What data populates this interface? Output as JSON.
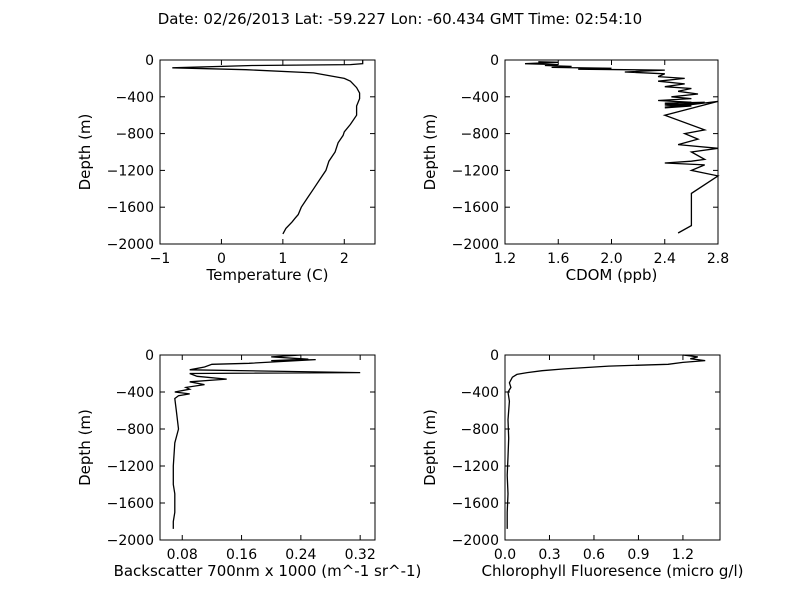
{
  "figure_title": "Date: 02/26/2013  Lat:  -59.227 Lon:  -60.434  GMT Time: 02:54:10",
  "chart_data": [
    {
      "type": "line",
      "xlabel": "Temperature (C)",
      "ylabel": "Depth (m)",
      "xlim": [
        -1,
        2.5
      ],
      "ylim": [
        -2000,
        0
      ],
      "xticks": [
        "−1",
        "0",
        "1",
        "2"
      ],
      "xtick_values": [
        -1,
        0,
        1,
        2
      ],
      "yticks": [
        "0",
        "−400",
        "−800",
        "−1200",
        "−1600",
        "−2000"
      ],
      "ytick_values": [
        0,
        -400,
        -800,
        -1200,
        -1600,
        -2000
      ],
      "series": [
        {
          "x": [
            2.3,
            2.3,
            2.1,
            0.5,
            -0.8,
            0.4,
            1.5,
            2.0,
            2.1,
            2.2,
            2.25,
            2.25,
            2.2,
            2.2,
            2.1,
            2.0,
            1.98,
            1.9,
            1.85,
            1.75,
            1.7,
            1.6,
            1.5,
            1.4,
            1.3,
            1.25,
            1.2,
            1.15,
            1.05,
            1.0
          ],
          "y": [
            0,
            -40,
            -50,
            -60,
            -85,
            -105,
            -140,
            -200,
            -230,
            -300,
            -360,
            -420,
            -500,
            -600,
            -700,
            -780,
            -820,
            -900,
            -1000,
            -1100,
            -1200,
            -1300,
            -1400,
            -1500,
            -1600,
            -1680,
            -1720,
            -1760,
            -1830,
            -1890
          ]
        }
      ]
    },
    {
      "type": "line",
      "xlabel": "CDOM (ppb)",
      "ylabel": "Depth (m)",
      "xlim": [
        1.2,
        2.8
      ],
      "ylim": [
        -2000,
        0
      ],
      "xticks": [
        "1.2",
        "1.6",
        "2.0",
        "2.4",
        "2.8"
      ],
      "xtick_values": [
        1.2,
        1.6,
        2.0,
        2.4,
        2.8
      ],
      "yticks": [
        "0",
        "−400",
        "−800",
        "−1200",
        "−1600",
        "−2000"
      ],
      "ytick_values": [
        0,
        -400,
        -800,
        -1200,
        -1600,
        -2000
      ],
      "series": [
        {
          "x": [
            1.45,
            1.6,
            1.35,
            1.6,
            1.5,
            1.7,
            1.55,
            2.0,
            1.75,
            2.4,
            2.1,
            2.4,
            2.35,
            2.55,
            2.35,
            2.55,
            2.4,
            2.6,
            2.5,
            2.65,
            2.45,
            2.6,
            2.35,
            2.6,
            2.4,
            2.55,
            2.4,
            2.7,
            2.4,
            2.6,
            2.4,
            2.8,
            2.4,
            2.7,
            2.55,
            2.65,
            2.5,
            2.8,
            2.6,
            2.7,
            2.6,
            2.4,
            2.7,
            2.6,
            2.8,
            2.6,
            2.6,
            2.5
          ],
          "y": [
            -20,
            -25,
            -40,
            -50,
            -60,
            -70,
            -80,
            -90,
            -100,
            -110,
            -130,
            -150,
            -180,
            -200,
            -230,
            -260,
            -290,
            -310,
            -340,
            -370,
            -400,
            -420,
            -440,
            -460,
            -480,
            -490,
            -500,
            -460,
            -470,
            -500,
            -520,
            -450,
            -600,
            -760,
            -800,
            -860,
            -920,
            -960,
            -1000,
            -1080,
            -1100,
            -1120,
            -1140,
            -1200,
            -1260,
            -1450,
            -1800,
            -1880
          ]
        }
      ]
    },
    {
      "type": "line",
      "xlabel": "Backscatter 700nm x 1000 (m^-1 sr^-1)",
      "ylabel": "Depth (m)",
      "xlim": [
        0.05,
        0.34
      ],
      "ylim": [
        -2000,
        0
      ],
      "xticks": [
        "0.08",
        "0.16",
        "0.24",
        "0.32"
      ],
      "xtick_values": [
        0.08,
        0.16,
        0.24,
        0.32
      ],
      "yticks": [
        "0",
        "−400",
        "−800",
        "−1200",
        "−1600",
        "−2000"
      ],
      "ytick_values": [
        0,
        -400,
        -800,
        -1200,
        -1600,
        -2000
      ],
      "series": [
        {
          "x": [
            0.24,
            0.2,
            0.25,
            0.2,
            0.26,
            0.17,
            0.12,
            0.11,
            0.09,
            0.32,
            0.09,
            0.1,
            0.14,
            0.09,
            0.11,
            0.085,
            0.09,
            0.07,
            0.09,
            0.075,
            0.07,
            0.072,
            0.075,
            0.07,
            0.068,
            0.068,
            0.07,
            0.07,
            0.068,
            0.068
          ],
          "y": [
            0,
            -20,
            -45,
            -60,
            -50,
            -90,
            -100,
            -130,
            -160,
            -190,
            -200,
            -230,
            -260,
            -290,
            -320,
            -350,
            -370,
            -400,
            -420,
            -440,
            -470,
            -600,
            -800,
            -950,
            -1200,
            -1400,
            -1500,
            -1700,
            -1800,
            -1880
          ]
        }
      ]
    },
    {
      "type": "line",
      "xlabel": "Chlorophyll Fluoresence (micro g/l)",
      "ylabel": "Depth (m)",
      "xlim": [
        0,
        1.45
      ],
      "ylim": [
        -2000,
        0
      ],
      "xticks": [
        "0.0",
        "0.3",
        "0.6",
        "0.9",
        "1.2"
      ],
      "xtick_values": [
        0,
        0.3,
        0.6,
        0.9,
        1.2
      ],
      "yticks": [
        "0",
        "−400",
        "−800",
        "−1200",
        "−1600",
        "−2000"
      ],
      "ytick_values": [
        0,
        -400,
        -800,
        -1200,
        -1600,
        -2000
      ],
      "series": [
        {
          "x": [
            1.2,
            1.3,
            1.25,
            1.35,
            1.2,
            1.1,
            0.7,
            0.4,
            0.25,
            0.15,
            0.08,
            0.05,
            0.03,
            0.04,
            0.02,
            0.03,
            0.02,
            0.025,
            0.02,
            0.015,
            0.02,
            0.015,
            0.015,
            0.015
          ],
          "y": [
            0,
            -20,
            -40,
            -60,
            -80,
            -100,
            -120,
            -150,
            -170,
            -190,
            -210,
            -240,
            -300,
            -350,
            -400,
            -500,
            -700,
            -900,
            -1100,
            -1300,
            -1500,
            -1700,
            -1800,
            -1880
          ]
        }
      ]
    }
  ]
}
